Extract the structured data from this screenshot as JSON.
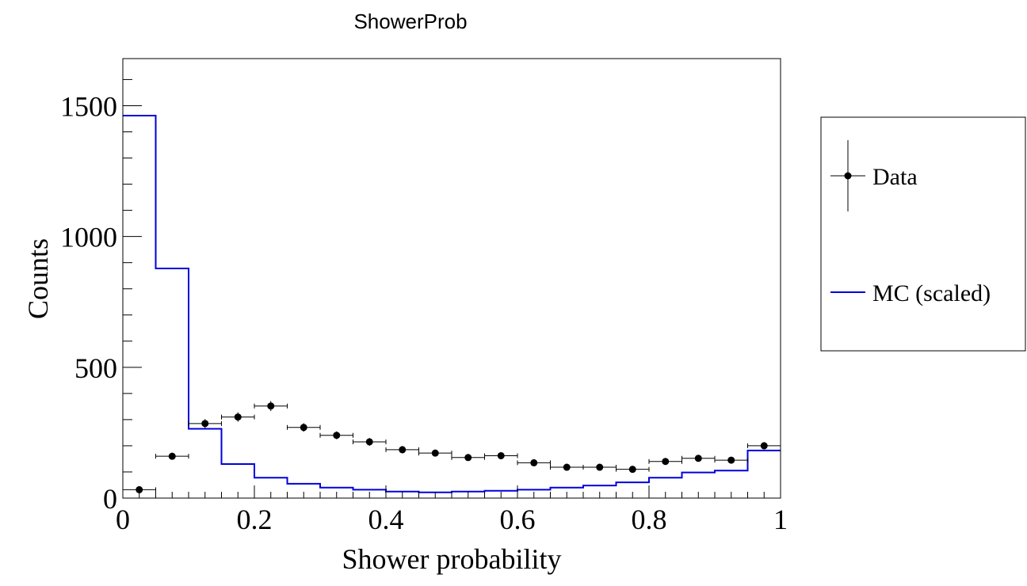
{
  "chart_data": {
    "type": "histogram",
    "title": "ShowerProb",
    "xlabel": "Shower probability",
    "ylabel": "Counts",
    "xlim": [
      0,
      1
    ],
    "ylim": [
      0,
      1680
    ],
    "x_ticks": [
      {
        "value": 0,
        "label": "0"
      },
      {
        "value": 0.2,
        "label": "0.2"
      },
      {
        "value": 0.4,
        "label": "0.4"
      },
      {
        "value": 0.6,
        "label": "0.6"
      },
      {
        "value": 0.8,
        "label": "0.8"
      },
      {
        "value": 1,
        "label": "1"
      }
    ],
    "y_ticks": [
      {
        "value": 0,
        "label": "0"
      },
      {
        "value": 500,
        "label": "500"
      },
      {
        "value": 1000,
        "label": "1000"
      },
      {
        "value": 1500,
        "label": "1500"
      }
    ],
    "bin_width": 0.05,
    "bin_edges": [
      0,
      0.05,
      0.1,
      0.15,
      0.2,
      0.25,
      0.3,
      0.35,
      0.4,
      0.45,
      0.5,
      0.55,
      0.6,
      0.65,
      0.7,
      0.75,
      0.8,
      0.85,
      0.9,
      0.95,
      1.0
    ],
    "series": [
      {
        "name": "Data",
        "style": "markers-with-errors",
        "color": "#000000",
        "x": [
          0.025,
          0.075,
          0.125,
          0.175,
          0.225,
          0.275,
          0.325,
          0.375,
          0.425,
          0.475,
          0.525,
          0.575,
          0.625,
          0.675,
          0.725,
          0.775,
          0.825,
          0.875,
          0.925,
          0.975
        ],
        "values": [
          32,
          160,
          285,
          310,
          352,
          270,
          240,
          215,
          185,
          172,
          155,
          162,
          135,
          118,
          118,
          110,
          140,
          152,
          145,
          200
        ],
        "errors": [
          6,
          13,
          17,
          18,
          19,
          16,
          15,
          15,
          14,
          13,
          12,
          13,
          12,
          11,
          11,
          10,
          12,
          12,
          12,
          14
        ]
      },
      {
        "name": "MC (scaled)",
        "style": "step",
        "color": "#0000dd",
        "values": [
          1462,
          878,
          265,
          130,
          78,
          55,
          40,
          32,
          25,
          22,
          25,
          28,
          32,
          40,
          48,
          60,
          78,
          98,
          105,
          182
        ]
      }
    ],
    "legend": {
      "placement": "right",
      "entries": [
        "Data",
        "MC (scaled)"
      ]
    },
    "grid": false
  }
}
